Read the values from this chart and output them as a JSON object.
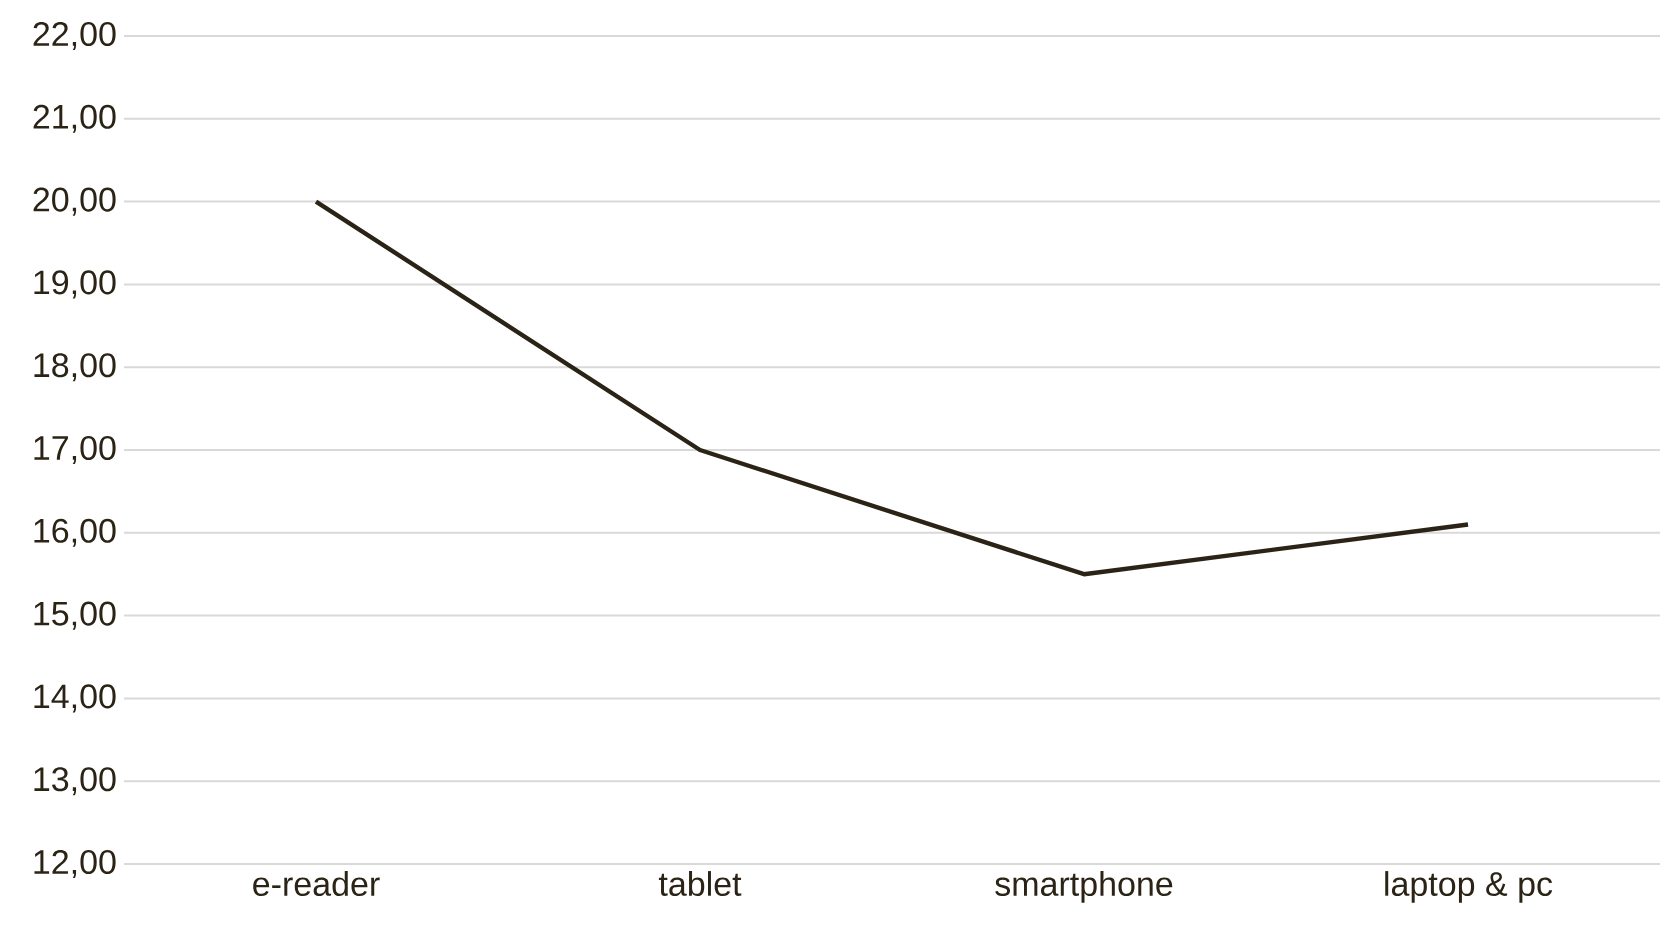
{
  "chart_data": {
    "type": "line",
    "categories": [
      "e-reader",
      "tablet",
      "smartphone",
      "laptop & pc"
    ],
    "values": [
      20,
      17,
      15.5,
      16.1
    ],
    "color": "#2b2416",
    "ylim": [
      12,
      22
    ],
    "yticks": [
      {
        "value": 12,
        "label": "12,00"
      },
      {
        "value": 13,
        "label": "13,00"
      },
      {
        "value": 14,
        "label": "14,00"
      },
      {
        "value": 15,
        "label": "15,00"
      },
      {
        "value": 16,
        "label": "16,00"
      },
      {
        "value": 17,
        "label": "17,00"
      },
      {
        "value": 18,
        "label": "18,00"
      },
      {
        "value": 19,
        "label": "19,00"
      },
      {
        "value": 20,
        "label": "20,00"
      },
      {
        "value": 21,
        "label": "21,00"
      },
      {
        "value": 22,
        "label": "22,00"
      }
    ],
    "grid": "y",
    "marker": "none",
    "line_style": "solid"
  }
}
